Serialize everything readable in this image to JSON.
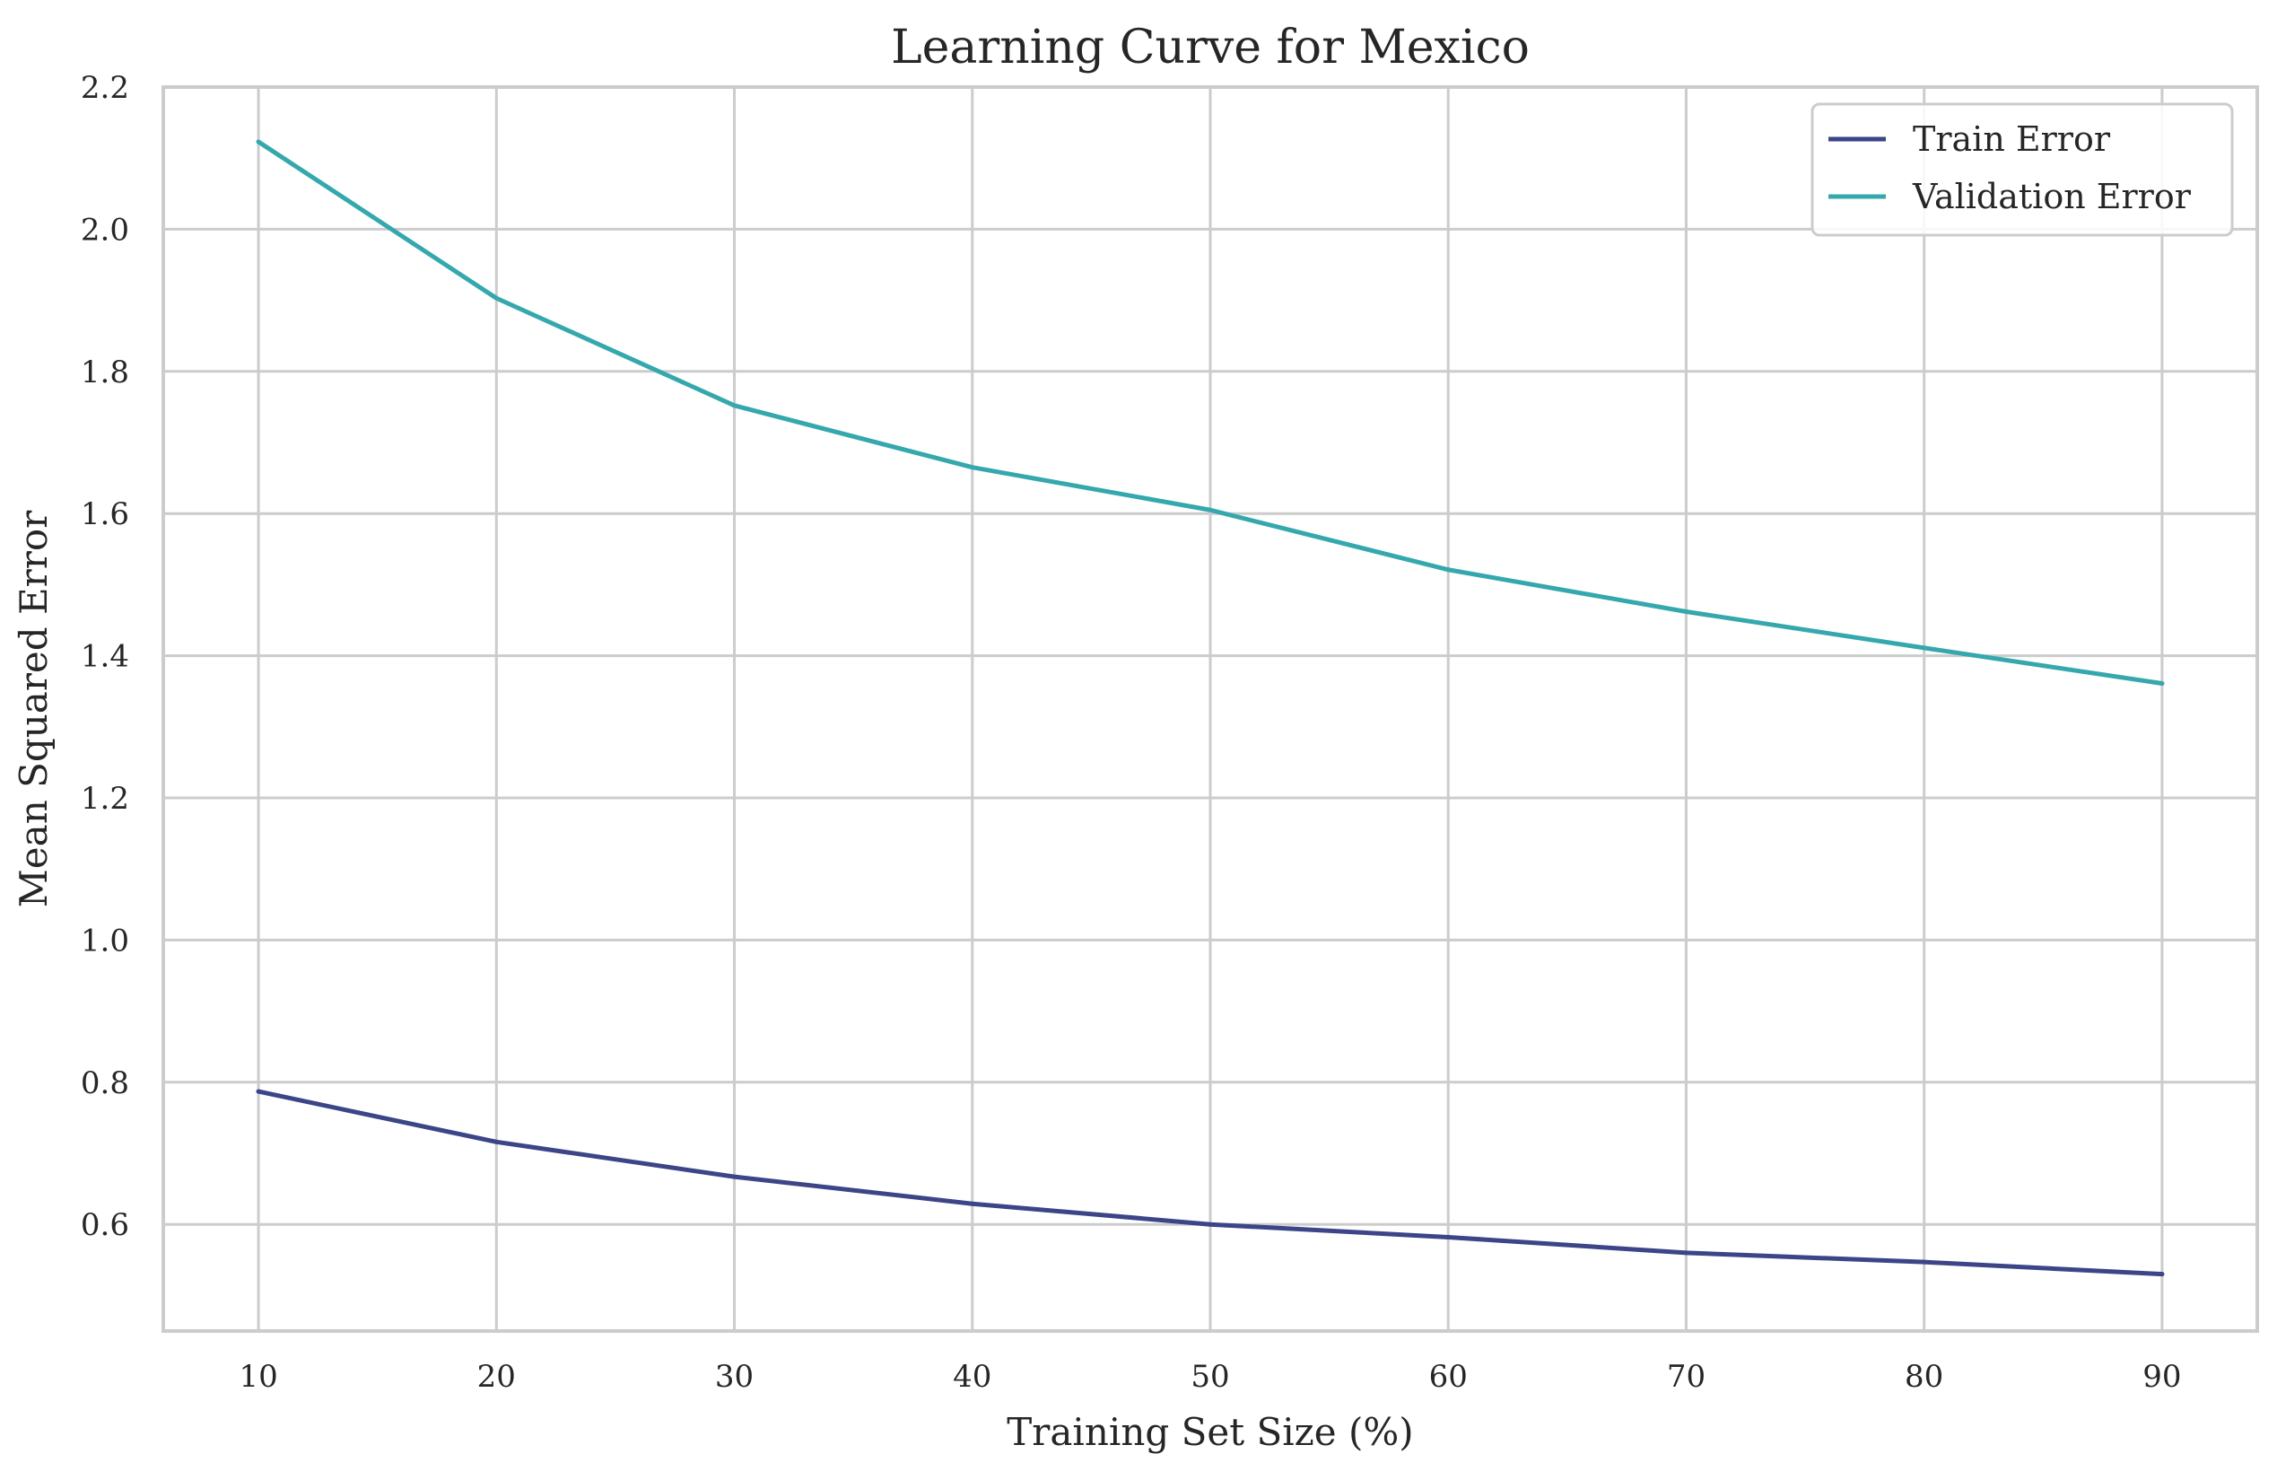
{
  "chart_data": {
    "type": "line",
    "title": "Learning Curve for Mexico",
    "xlabel": "Training Set Size (%)",
    "ylabel": "Mean Squared Error",
    "x": [
      10,
      20,
      30,
      40,
      50,
      60,
      70,
      80,
      90
    ],
    "xlim": [
      6,
      94
    ],
    "ylim": [
      0.45,
      2.2
    ],
    "xticks": [
      10,
      20,
      30,
      40,
      50,
      60,
      70,
      80,
      90
    ],
    "yticks": [
      0.6,
      0.8,
      1.0,
      1.2,
      1.4,
      1.6,
      1.8,
      2.0,
      2.2
    ],
    "xtick_labels": [
      "10",
      "20",
      "30",
      "40",
      "50",
      "60",
      "70",
      "80",
      "90"
    ],
    "ytick_labels": [
      "0.6",
      "0.8",
      "1.0",
      "1.2",
      "1.4",
      "1.6",
      "1.8",
      "2.0",
      "2.2"
    ],
    "grid": true,
    "legend_position": "top-right",
    "series": [
      {
        "name": "Train Error",
        "color": "#3b4587",
        "values": [
          0.787,
          0.716,
          0.667,
          0.629,
          0.6,
          0.582,
          0.56,
          0.547,
          0.53
        ]
      },
      {
        "name": "Validation Error",
        "color": "#35a8ad",
        "values": [
          2.123,
          1.903,
          1.752,
          1.665,
          1.605,
          1.521,
          1.462,
          1.411,
          1.361
        ]
      }
    ],
    "colors": {
      "grid": "#cccccc",
      "frame": "#cccccc",
      "text": "#262626"
    }
  }
}
